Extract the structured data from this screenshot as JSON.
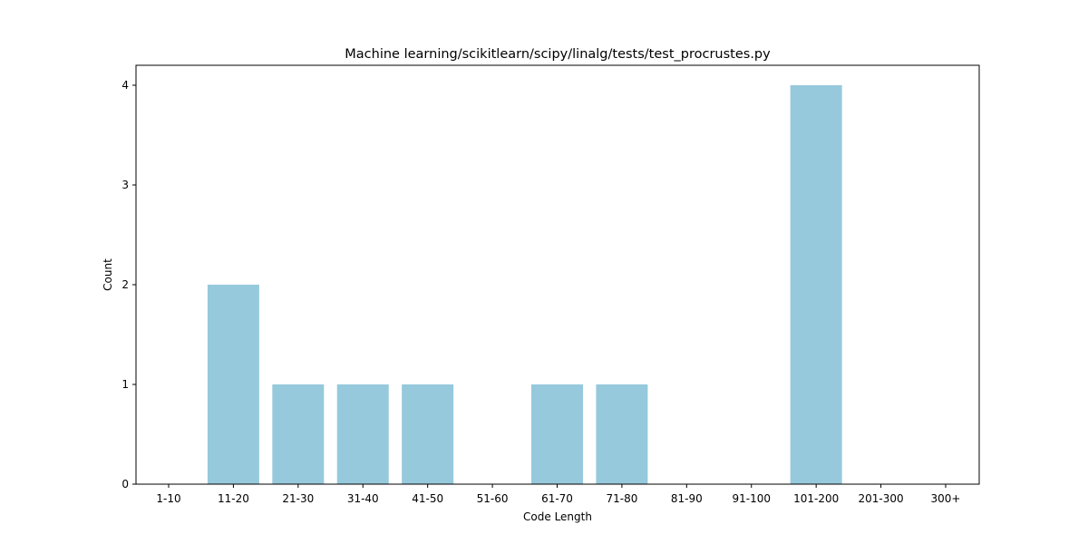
{
  "chart_data": {
    "type": "bar",
    "title": "Machine learning/scikitlearn/scipy/linalg/tests/test_procrustes.py",
    "xlabel": "Code Length",
    "ylabel": "Count",
    "categories": [
      "1-10",
      "11-20",
      "21-30",
      "31-40",
      "41-50",
      "51-60",
      "61-70",
      "71-80",
      "81-90",
      "91-100",
      "101-200",
      "201-300",
      "300+"
    ],
    "values": [
      0,
      2,
      1,
      1,
      1,
      0,
      1,
      1,
      0,
      0,
      4,
      0,
      0
    ],
    "yticks": [
      "0",
      "1",
      "2",
      "3",
      "4"
    ],
    "ylim": [
      0,
      4.2
    ],
    "bar_color": "#96c9dc",
    "grid": false,
    "legend": false
  }
}
